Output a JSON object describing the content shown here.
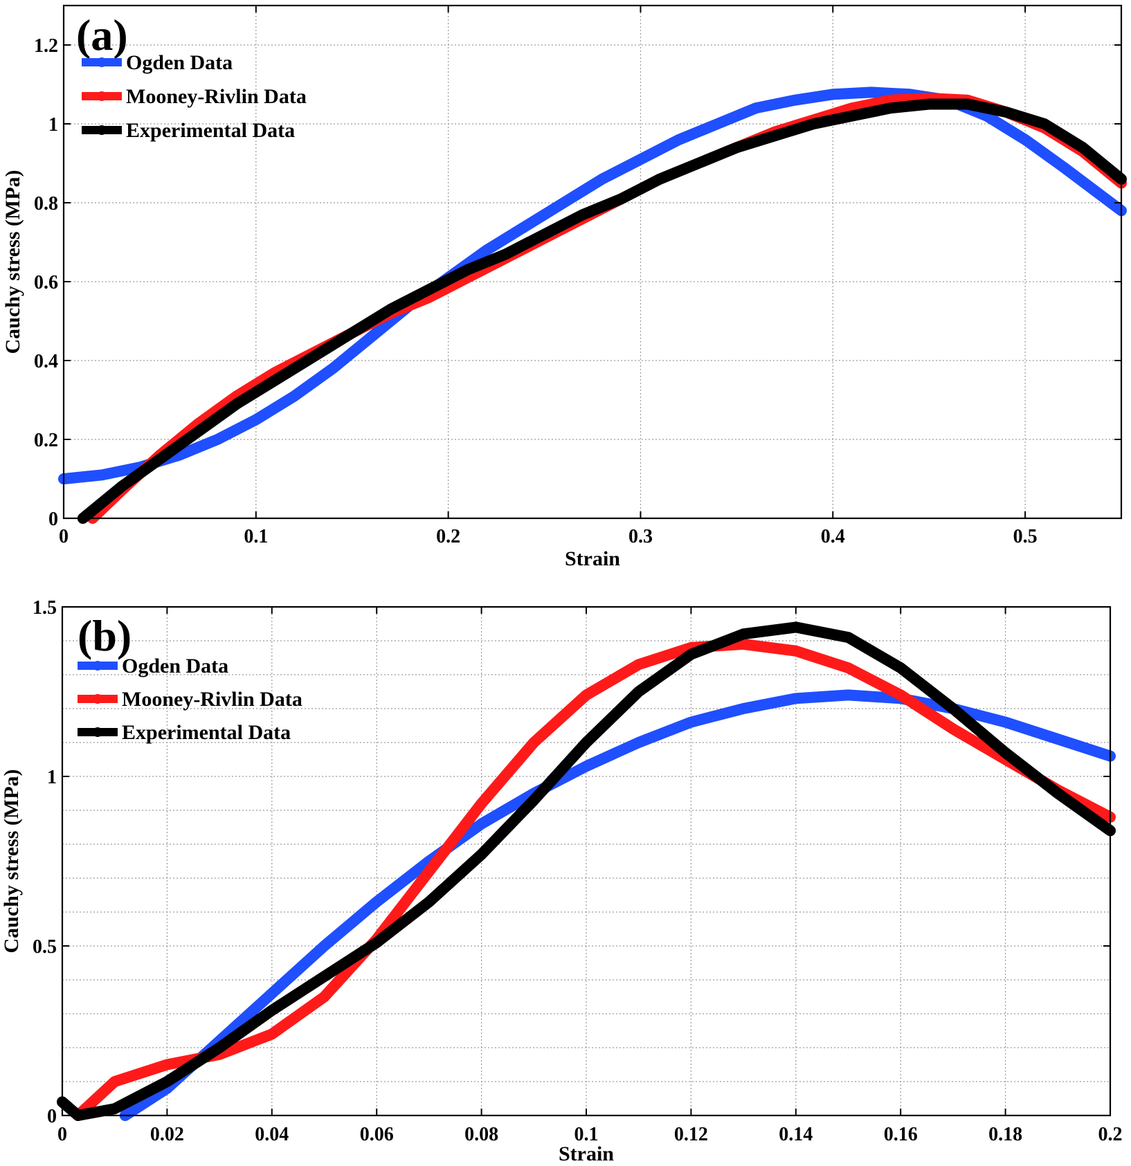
{
  "chart_data": [
    {
      "type": "line",
      "panel_label": "(a)",
      "xlabel": "Strain",
      "ylabel": "Cauchy stress (MPa)",
      "xlim": [
        0,
        0.55
      ],
      "ylim": [
        0,
        1.3
      ],
      "xticks": [
        0,
        0.1,
        0.2,
        0.3,
        0.4,
        0.5
      ],
      "xtick_labels": [
        "0",
        "0.1",
        "0.2",
        "0.3",
        "0.4",
        "0.5"
      ],
      "yticks": [
        0,
        0.2,
        0.4,
        0.6,
        0.8,
        1,
        1.2
      ],
      "ytick_labels": [
        "0",
        "0.2",
        "0.4",
        "0.6",
        "0.8",
        "1",
        "1.2"
      ],
      "grid": true,
      "legend_position": "top-left",
      "series": [
        {
          "name": "Ogden Data",
          "color": "#1f4fff",
          "x": [
            0,
            0.02,
            0.04,
            0.06,
            0.08,
            0.1,
            0.12,
            0.14,
            0.16,
            0.18,
            0.2,
            0.22,
            0.24,
            0.26,
            0.28,
            0.3,
            0.32,
            0.34,
            0.36,
            0.38,
            0.4,
            0.42,
            0.44,
            0.46,
            0.48,
            0.5,
            0.52,
            0.55
          ],
          "y": [
            0.1,
            0.11,
            0.13,
            0.16,
            0.2,
            0.25,
            0.31,
            0.38,
            0.46,
            0.54,
            0.61,
            0.68,
            0.74,
            0.8,
            0.86,
            0.91,
            0.96,
            1.0,
            1.04,
            1.06,
            1.075,
            1.08,
            1.075,
            1.06,
            1.02,
            0.96,
            0.89,
            0.78
          ]
        },
        {
          "name": "Mooney-Rivlin Data",
          "color": "#ff1a1a",
          "x": [
            0.015,
            0.03,
            0.05,
            0.07,
            0.09,
            0.11,
            0.13,
            0.15,
            0.17,
            0.19,
            0.21,
            0.23,
            0.25,
            0.27,
            0.29,
            0.31,
            0.33,
            0.35,
            0.37,
            0.39,
            0.41,
            0.43,
            0.45,
            0.47,
            0.49,
            0.51,
            0.53,
            0.55
          ],
          "y": [
            0,
            0.07,
            0.16,
            0.24,
            0.31,
            0.37,
            0.42,
            0.47,
            0.52,
            0.56,
            0.61,
            0.66,
            0.71,
            0.76,
            0.81,
            0.86,
            0.9,
            0.94,
            0.98,
            1.01,
            1.04,
            1.06,
            1.065,
            1.06,
            1.03,
            0.99,
            0.93,
            0.85
          ]
        },
        {
          "name": "Experimental Data",
          "color": "#000000",
          "x": [
            0.01,
            0.03,
            0.05,
            0.07,
            0.09,
            0.11,
            0.13,
            0.15,
            0.17,
            0.19,
            0.21,
            0.23,
            0.25,
            0.27,
            0.29,
            0.31,
            0.33,
            0.35,
            0.37,
            0.39,
            0.41,
            0.43,
            0.45,
            0.47,
            0.49,
            0.51,
            0.53,
            0.55
          ],
          "y": [
            0,
            0.08,
            0.15,
            0.22,
            0.29,
            0.35,
            0.41,
            0.47,
            0.53,
            0.58,
            0.63,
            0.67,
            0.72,
            0.77,
            0.81,
            0.86,
            0.9,
            0.94,
            0.97,
            1.0,
            1.02,
            1.04,
            1.05,
            1.05,
            1.03,
            1.0,
            0.94,
            0.86
          ]
        }
      ]
    },
    {
      "type": "line",
      "panel_label": "(b)",
      "xlabel": "Strain",
      "ylabel": "Cauchy stress (MPa)",
      "xlim": [
        0,
        0.2
      ],
      "ylim": [
        0,
        1.5
      ],
      "xticks": [
        0,
        0.02,
        0.04,
        0.06,
        0.08,
        0.1,
        0.12,
        0.14,
        0.16,
        0.18,
        0.2
      ],
      "xtick_labels": [
        "0",
        "0.02",
        "0.04",
        "0.06",
        "0.08",
        "0.1",
        "0.12",
        "0.14",
        "0.16",
        "0.18",
        "0.2"
      ],
      "yticks": [
        0,
        0.5,
        1,
        1.5
      ],
      "ytick_labels": [
        "0",
        "0.5",
        "1",
        "1.5"
      ],
      "yminor": [
        0.1,
        0.2,
        0.3,
        0.4,
        0.6,
        0.7,
        0.8,
        0.9,
        1.1,
        1.2,
        1.3,
        1.4
      ],
      "grid": true,
      "legend_position": "top-left",
      "series": [
        {
          "name": "Ogden Data",
          "color": "#1f4fff",
          "x": [
            0.012,
            0.02,
            0.03,
            0.04,
            0.05,
            0.06,
            0.07,
            0.08,
            0.09,
            0.1,
            0.11,
            0.12,
            0.13,
            0.14,
            0.15,
            0.16,
            0.17,
            0.18,
            0.19,
            0.2
          ],
          "y": [
            0,
            0.08,
            0.22,
            0.36,
            0.5,
            0.63,
            0.75,
            0.86,
            0.95,
            1.03,
            1.1,
            1.16,
            1.2,
            1.23,
            1.24,
            1.23,
            1.2,
            1.16,
            1.11,
            1.06
          ]
        },
        {
          "name": "Mooney-Rivlin Data",
          "color": "#ff1a1a",
          "x": [
            0.003,
            0.01,
            0.02,
            0.03,
            0.04,
            0.05,
            0.06,
            0.07,
            0.08,
            0.09,
            0.1,
            0.11,
            0.12,
            0.13,
            0.14,
            0.15,
            0.16,
            0.17,
            0.18,
            0.19,
            0.2
          ],
          "y": [
            0,
            0.1,
            0.15,
            0.18,
            0.24,
            0.35,
            0.52,
            0.72,
            0.92,
            1.1,
            1.24,
            1.33,
            1.38,
            1.39,
            1.37,
            1.32,
            1.24,
            1.14,
            1.05,
            0.96,
            0.88
          ]
        },
        {
          "name": "Experimental Data",
          "color": "#000000",
          "x": [
            0,
            0.003,
            0.01,
            0.02,
            0.03,
            0.04,
            0.05,
            0.06,
            0.07,
            0.08,
            0.09,
            0.1,
            0.11,
            0.12,
            0.13,
            0.14,
            0.15,
            0.16,
            0.17,
            0.18,
            0.19,
            0.2
          ],
          "y": [
            0.04,
            0,
            0.02,
            0.1,
            0.2,
            0.31,
            0.41,
            0.51,
            0.63,
            0.77,
            0.93,
            1.1,
            1.25,
            1.36,
            1.42,
            1.44,
            1.41,
            1.32,
            1.2,
            1.07,
            0.95,
            0.84
          ]
        }
      ]
    }
  ]
}
